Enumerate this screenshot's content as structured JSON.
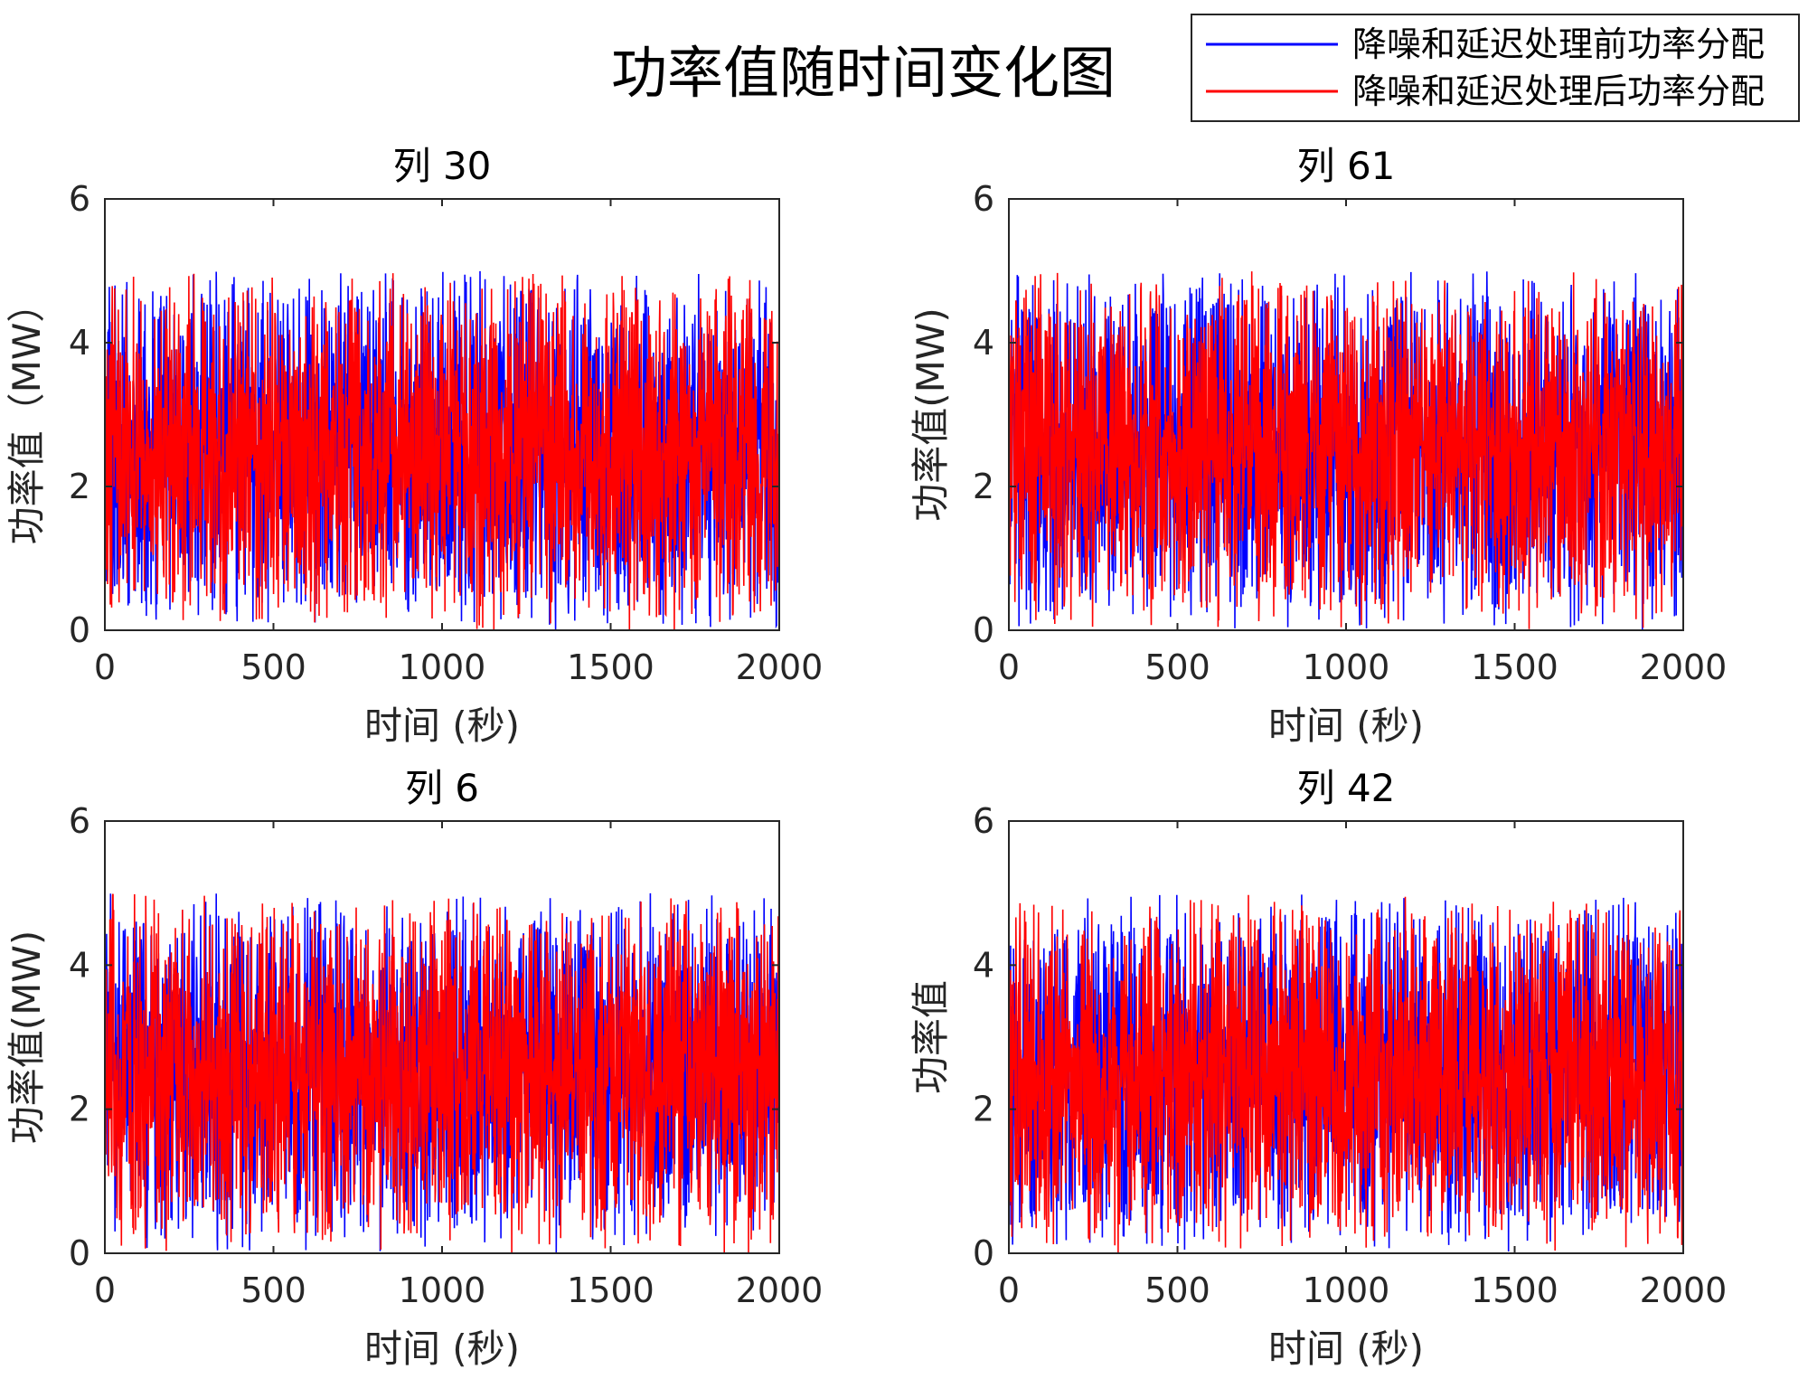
{
  "figure_title": "功率值随时间变化图",
  "colors": {
    "before": "#0000ff",
    "after": "#ff0000"
  },
  "legend": {
    "placement": "top-right",
    "entries": [
      "降噪和延迟处理前功率分配",
      "降噪和延迟处理后功率分配"
    ]
  },
  "chart_data": [
    {
      "type": "line",
      "title": "列 30",
      "xlabel": "时间 (秒)",
      "ylabel": "功率值（MW）",
      "xlim": [
        0,
        2000
      ],
      "ylim": [
        0,
        6
      ],
      "xticks": [
        "0",
        "500",
        "1000",
        "1500",
        "2000"
      ],
      "yticks": [
        "0",
        "2",
        "4",
        "6"
      ],
      "grid": false,
      "series": [
        {
          "name": "降噪和延迟处理前功率分配",
          "color": "#0000ff",
          "n_points": 2000,
          "min": 0,
          "max": 5,
          "mean": 2.5
        },
        {
          "name": "降噪和延迟处理后功率分配",
          "color": "#ff0000",
          "n_points": 2000,
          "min": 0,
          "max": 5,
          "mean": 2.5
        }
      ]
    },
    {
      "type": "line",
      "title": "列 61",
      "xlabel": "时间 (秒)",
      "ylabel": "功率值(MW)",
      "xlim": [
        0,
        2000
      ],
      "ylim": [
        0,
        6
      ],
      "xticks": [
        "0",
        "500",
        "1000",
        "1500",
        "2000"
      ],
      "yticks": [
        "0",
        "2",
        "4",
        "6"
      ],
      "grid": false,
      "series": [
        {
          "name": "降噪和延迟处理前功率分配",
          "color": "#0000ff",
          "n_points": 2000,
          "min": 0,
          "max": 5,
          "mean": 2.5
        },
        {
          "name": "降噪和延迟处理后功率分配",
          "color": "#ff0000",
          "n_points": 2000,
          "min": 0,
          "max": 5,
          "mean": 2.5
        }
      ]
    },
    {
      "type": "line",
      "title": "列 6",
      "xlabel": "时间 (秒)",
      "ylabel": "功率值(MW)",
      "xlim": [
        0,
        2000
      ],
      "ylim": [
        0,
        6
      ],
      "xticks": [
        "0",
        "500",
        "1000",
        "1500",
        "2000"
      ],
      "yticks": [
        "0",
        "2",
        "4",
        "6"
      ],
      "grid": false,
      "series": [
        {
          "name": "降噪和延迟处理前功率分配",
          "color": "#0000ff",
          "n_points": 2000,
          "min": 0,
          "max": 5,
          "mean": 2.5
        },
        {
          "name": "降噪和延迟处理后功率分配",
          "color": "#ff0000",
          "n_points": 2000,
          "min": 0,
          "max": 5,
          "mean": 2.5
        }
      ]
    },
    {
      "type": "line",
      "title": "列 42",
      "xlabel": "时间 (秒)",
      "ylabel": "功率值",
      "xlim": [
        0,
        2000
      ],
      "ylim": [
        0,
        6
      ],
      "xticks": [
        "0",
        "500",
        "1000",
        "1500",
        "2000"
      ],
      "yticks": [
        "0",
        "2",
        "4",
        "6"
      ],
      "grid": false,
      "series": [
        {
          "name": "降噪和延迟处理前功率分配",
          "color": "#0000ff",
          "n_points": 2000,
          "min": 0,
          "max": 5,
          "mean": 2.5
        },
        {
          "name": "降噪和延迟处理后功率分配",
          "color": "#ff0000",
          "n_points": 2000,
          "min": 0,
          "max": 5,
          "mean": 2.5
        }
      ]
    }
  ]
}
